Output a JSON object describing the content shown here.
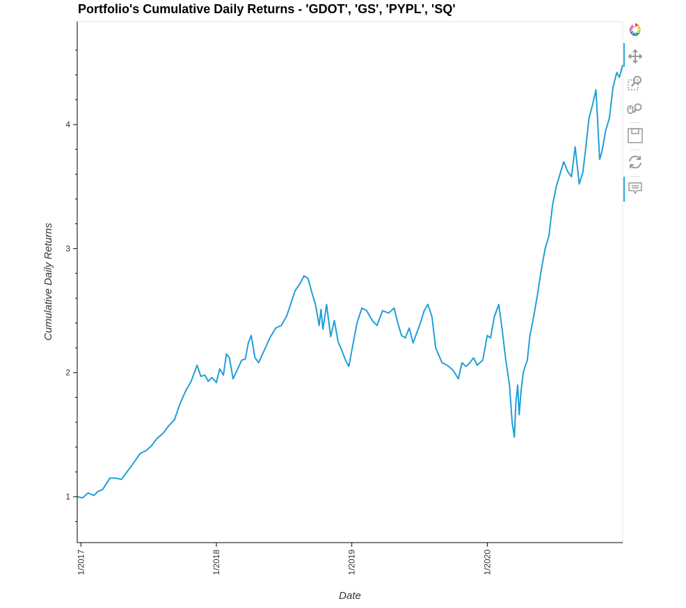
{
  "chart_data": {
    "type": "line",
    "title": "Portfolio's Cumulative Daily Returns - 'GDOT', 'GS', 'PYPL', 'SQ'",
    "xlabel": "Date",
    "ylabel": "Cumulative Daily Returns",
    "xlim": [
      "2016-12-22",
      "2020-12-31"
    ],
    "ylim": [
      0.63,
      4.83
    ],
    "x_ticks": [
      {
        "date": "2017-01-01",
        "label": "1/2017"
      },
      {
        "date": "2018-01-01",
        "label": "1/2018"
      },
      {
        "date": "2019-01-01",
        "label": "1/2019"
      },
      {
        "date": "2020-01-01",
        "label": "1/2020"
      }
    ],
    "y_ticks": [
      {
        "value": 1,
        "label": "1"
      },
      {
        "value": 2,
        "label": "2"
      },
      {
        "value": 3,
        "label": "3"
      },
      {
        "value": 4,
        "label": "4"
      }
    ],
    "grid": false,
    "line_color": "#1f9ed8",
    "series": [
      {
        "x": [
          "2016-12-23",
          "2017-01-05",
          "2017-01-20",
          "2017-02-05",
          "2017-02-15",
          "2017-03-01",
          "2017-03-20",
          "2017-04-05",
          "2017-04-20",
          "2017-05-05",
          "2017-05-20",
          "2017-06-10",
          "2017-06-25",
          "2017-07-10",
          "2017-07-25",
          "2017-08-10",
          "2017-08-25",
          "2017-09-10",
          "2017-09-25",
          "2017-10-10",
          "2017-10-25",
          "2017-11-10",
          "2017-11-20",
          "2017-12-01",
          "2017-12-10",
          "2017-12-20",
          "2018-01-01",
          "2018-01-10",
          "2018-01-20",
          "2018-01-28",
          "2018-02-05",
          "2018-02-15",
          "2018-03-01",
          "2018-03-10",
          "2018-03-20",
          "2018-03-28",
          "2018-04-05",
          "2018-04-15",
          "2018-04-25",
          "2018-05-10",
          "2018-05-25",
          "2018-06-10",
          "2018-06-25",
          "2018-07-10",
          "2018-07-20",
          "2018-08-01",
          "2018-08-15",
          "2018-08-25",
          "2018-09-05",
          "2018-09-15",
          "2018-09-25",
          "2018-10-01",
          "2018-10-05",
          "2018-10-10",
          "2018-10-15",
          "2018-10-25",
          "2018-11-05",
          "2018-11-15",
          "2018-11-25",
          "2018-12-05",
          "2018-12-15",
          "2018-12-24",
          "2019-01-01",
          "2019-01-15",
          "2019-01-28",
          "2019-02-10",
          "2019-02-25",
          "2019-03-10",
          "2019-03-25",
          "2019-04-10",
          "2019-04-25",
          "2019-05-05",
          "2019-05-15",
          "2019-05-25",
          "2019-06-05",
          "2019-06-15",
          "2019-06-25",
          "2019-07-05",
          "2019-07-15",
          "2019-07-25",
          "2019-08-05",
          "2019-08-15",
          "2019-09-01",
          "2019-09-15",
          "2019-10-01",
          "2019-10-15",
          "2019-10-25",
          "2019-11-05",
          "2019-11-15",
          "2019-11-25",
          "2019-12-05",
          "2019-12-20",
          "2020-01-01",
          "2020-01-10",
          "2020-01-20",
          "2020-02-01",
          "2020-02-10",
          "2020-02-20",
          "2020-03-01",
          "2020-03-08",
          "2020-03-14",
          "2020-03-18",
          "2020-03-23",
          "2020-03-27",
          "2020-04-01",
          "2020-04-07",
          "2020-04-12",
          "2020-04-18",
          "2020-04-25",
          "2020-05-05",
          "2020-05-15",
          "2020-05-25",
          "2020-06-05",
          "2020-06-15",
          "2020-06-25",
          "2020-07-05",
          "2020-07-15",
          "2020-07-25",
          "2020-08-05",
          "2020-08-15",
          "2020-08-25",
          "2020-09-05",
          "2020-09-15",
          "2020-09-22",
          "2020-10-01",
          "2020-10-10",
          "2020-10-20",
          "2020-10-30",
          "2020-11-05",
          "2020-11-15",
          "2020-11-25",
          "2020-12-05",
          "2020-12-15",
          "2020-12-22",
          "2020-12-31"
        ],
        "y": [
          1.0,
          0.99,
          1.03,
          1.01,
          1.04,
          1.06,
          1.15,
          1.15,
          1.14,
          1.2,
          1.26,
          1.35,
          1.37,
          1.41,
          1.47,
          1.51,
          1.57,
          1.62,
          1.75,
          1.85,
          1.93,
          2.06,
          1.97,
          1.98,
          1.93,
          1.96,
          1.92,
          2.03,
          1.98,
          2.15,
          2.12,
          1.95,
          2.04,
          2.1,
          2.11,
          2.24,
          2.3,
          2.12,
          2.08,
          2.18,
          2.28,
          2.36,
          2.38,
          2.46,
          2.55,
          2.66,
          2.72,
          2.78,
          2.76,
          2.65,
          2.55,
          2.45,
          2.38,
          2.51,
          2.35,
          2.55,
          2.29,
          2.42,
          2.25,
          2.18,
          2.1,
          2.05,
          2.18,
          2.4,
          2.52,
          2.5,
          2.42,
          2.38,
          2.5,
          2.48,
          2.52,
          2.4,
          2.3,
          2.28,
          2.36,
          2.24,
          2.32,
          2.4,
          2.5,
          2.55,
          2.45,
          2.2,
          2.08,
          2.06,
          2.02,
          1.95,
          2.08,
          2.05,
          2.08,
          2.12,
          2.06,
          2.1,
          2.3,
          2.28,
          2.45,
          2.55,
          2.35,
          2.1,
          1.9,
          1.6,
          1.48,
          1.75,
          1.9,
          1.66,
          1.85,
          2.0,
          2.05,
          2.1,
          2.3,
          2.45,
          2.62,
          2.82,
          3.0,
          3.1,
          3.35,
          3.5,
          3.6,
          3.7,
          3.62,
          3.58,
          3.82,
          3.52,
          3.62,
          3.8,
          4.05,
          4.15,
          4.28,
          3.72,
          3.78,
          3.95,
          4.05,
          4.3,
          4.42,
          4.38,
          4.48
        ]
      }
    ]
  },
  "toolbar": {
    "tools": [
      "bokeh-logo-icon",
      "pan-icon",
      "box-zoom-icon",
      "wheel-zoom-icon",
      "save-icon",
      "reset-icon",
      "hover-icon"
    ]
  }
}
